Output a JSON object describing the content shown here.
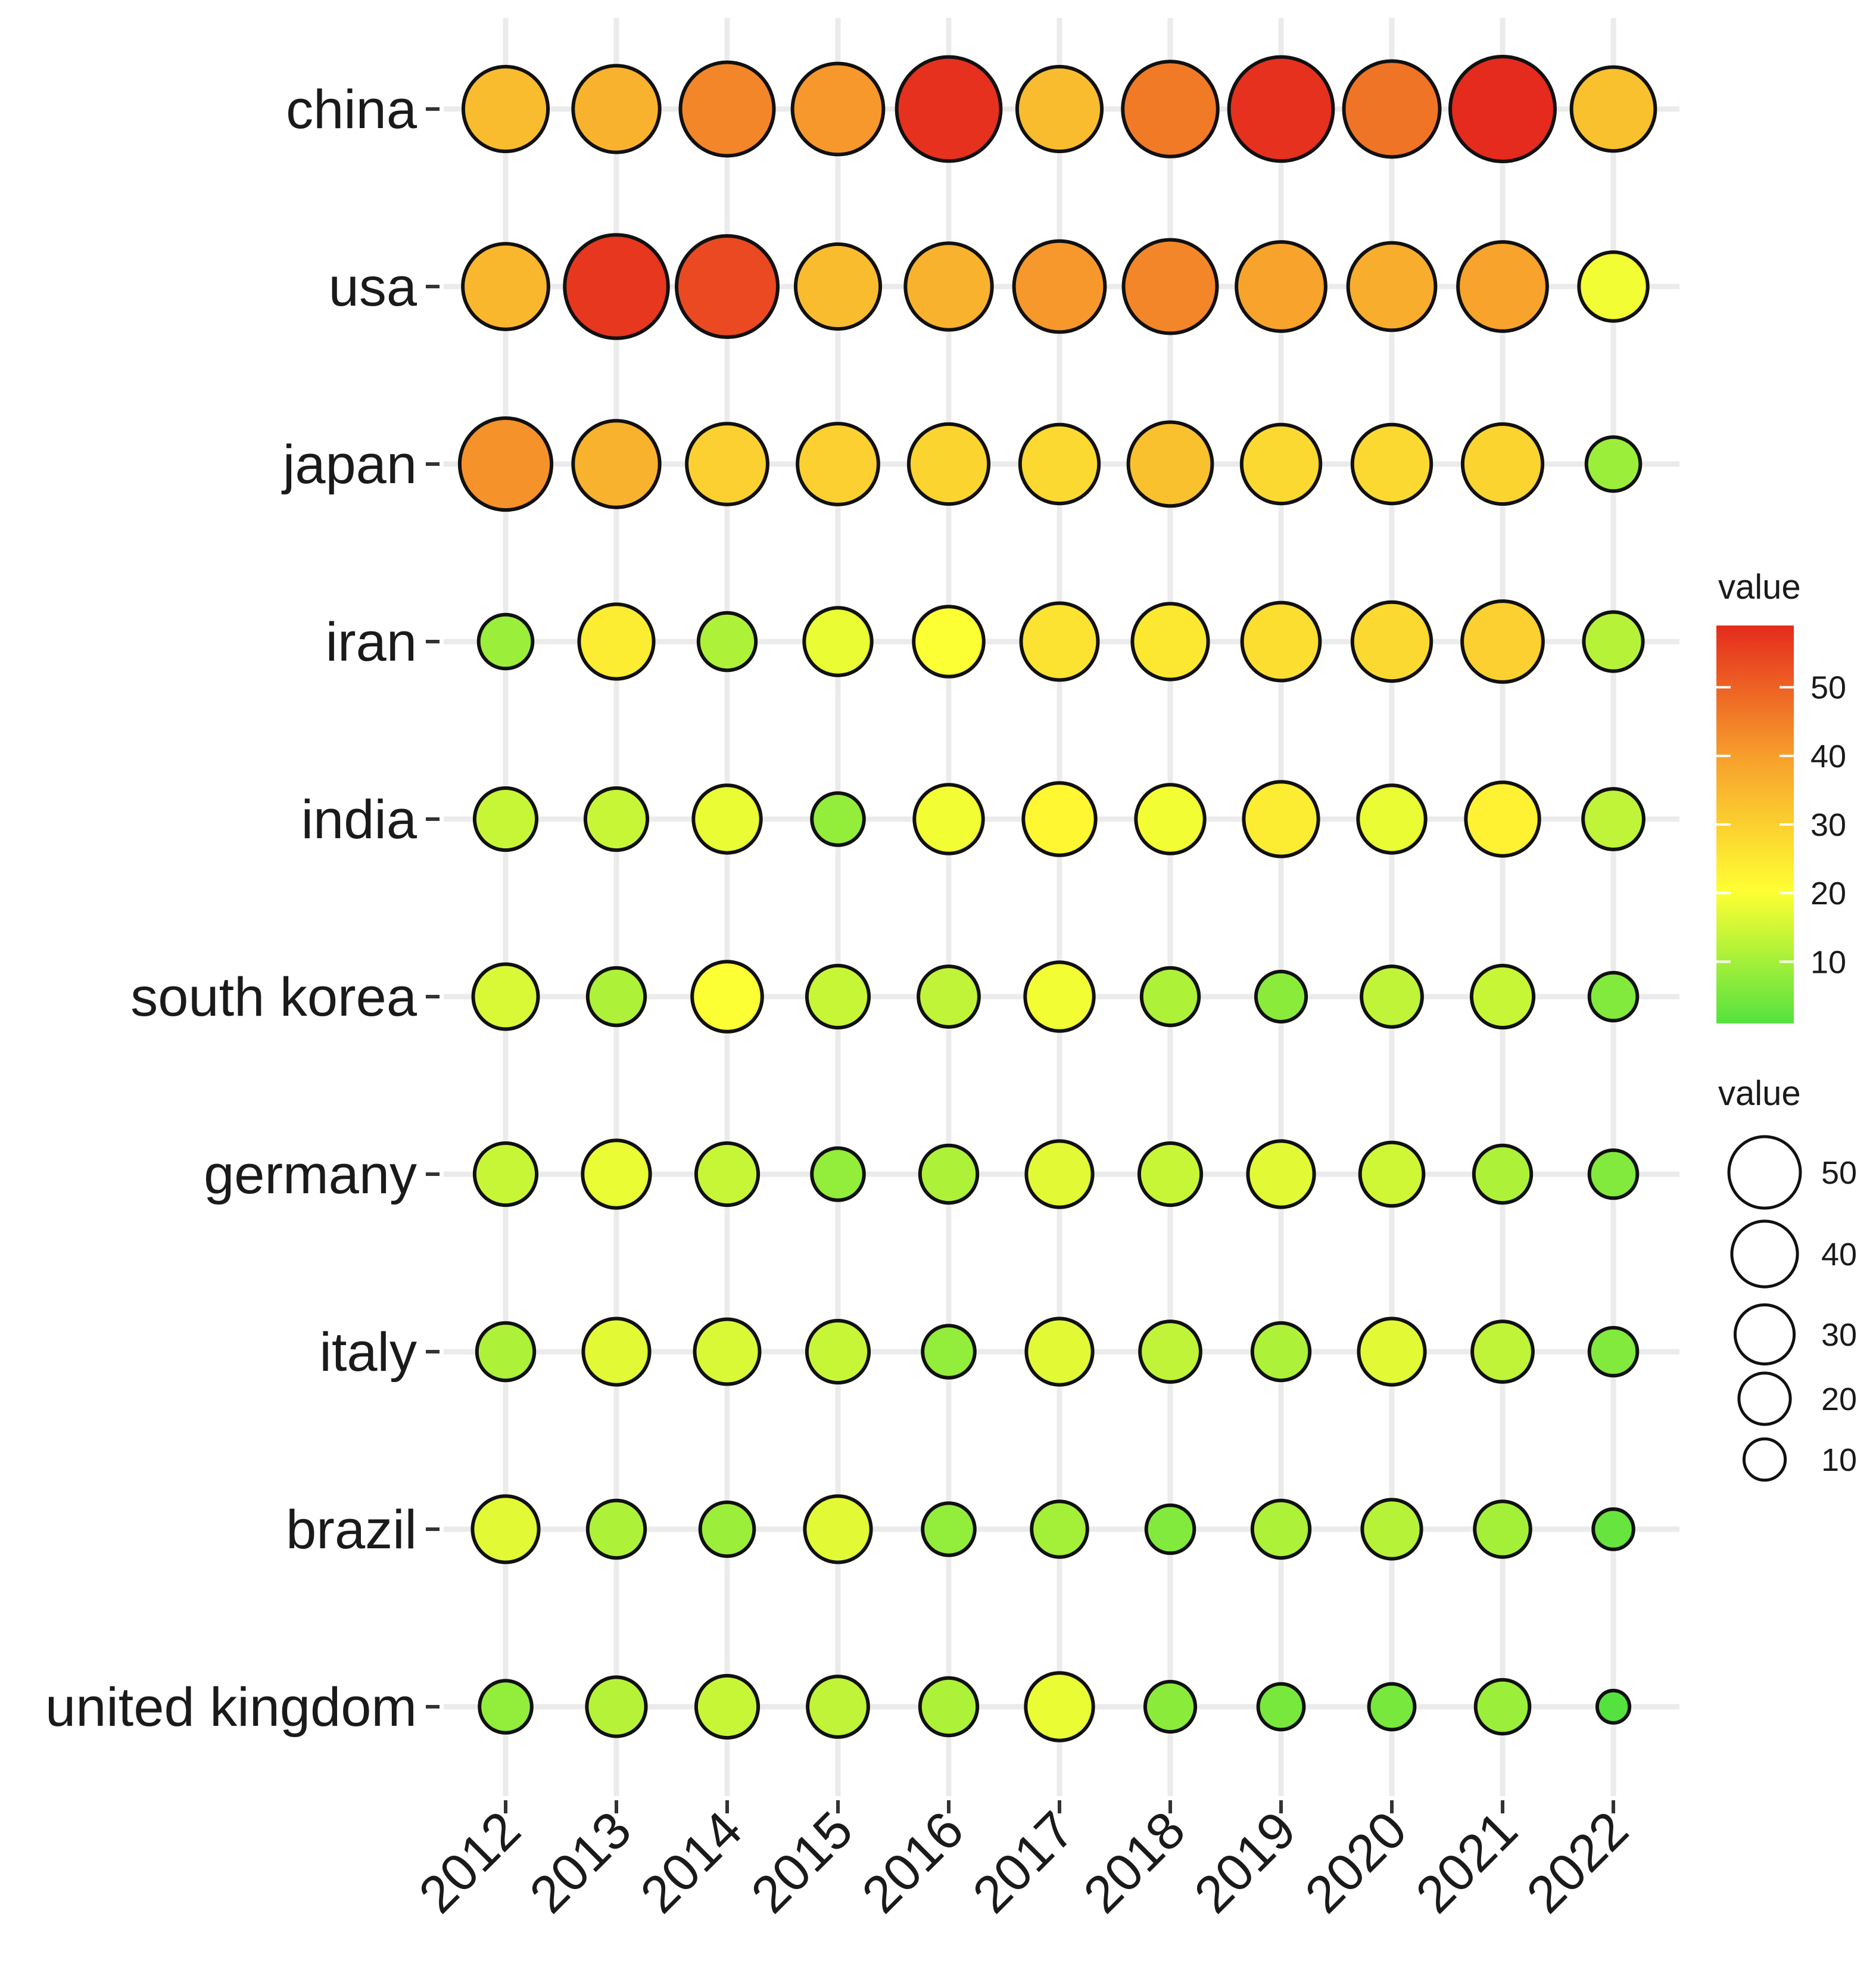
{
  "chart_data": {
    "type": "bubble",
    "title": "",
    "xlabel": "",
    "ylabel": "",
    "years": [
      "2012",
      "2013",
      "2014",
      "2015",
      "2016",
      "2017",
      "2018",
      "2019",
      "2020",
      "2021",
      "2022"
    ],
    "countries": [
      "china",
      "usa",
      "japan",
      "iran",
      "india",
      "south korea",
      "germany",
      "italy",
      "brazil",
      "united kingdom"
    ],
    "values": {
      "china": [
        34,
        36,
        44,
        41,
        58,
        34,
        46,
        58,
        47,
        59,
        33
      ],
      "usa": [
        35,
        57,
        54,
        34,
        36,
        41,
        44,
        39,
        37,
        39,
        19
      ],
      "japan": [
        42,
        36,
        30,
        30,
        29,
        28,
        33,
        28,
        28,
        29,
        9
      ],
      "iran": [
        9,
        24,
        11,
        18,
        20,
        26,
        25,
        27,
        28,
        30,
        12
      ],
      "india": [
        14,
        14,
        18,
        8,
        19,
        22,
        19,
        24,
        18,
        23,
        13
      ],
      "south korea": [
        16,
        11,
        20,
        14,
        13,
        19,
        11,
        7,
        13,
        14,
        6
      ],
      "germany": [
        14,
        18,
        14,
        8,
        11,
        17,
        14,
        17,
        15,
        11,
        6
      ],
      "italy": [
        11,
        17,
        16,
        14,
        8,
        17,
        13,
        11,
        17,
        13,
        6
      ],
      "brazil": [
        17,
        11,
        9,
        17,
        8,
        10,
        6,
        11,
        12,
        10,
        3
      ],
      "united kingdom": [
        8,
        12,
        14,
        13,
        11,
        18,
        7,
        5,
        5,
        9,
        1
      ]
    },
    "legends": {
      "color": {
        "title": "value",
        "ticks": [
          10,
          20,
          30,
          40,
          50
        ],
        "range": [
          1,
          59
        ],
        "colors": [
          "#55e23f",
          "#ffff33",
          "#f7a02c",
          "#e52b1d"
        ]
      },
      "size": {
        "title": "value",
        "ticks": [
          50,
          40,
          30,
          20,
          10
        ]
      }
    },
    "grid": true,
    "legend_position": "right"
  }
}
